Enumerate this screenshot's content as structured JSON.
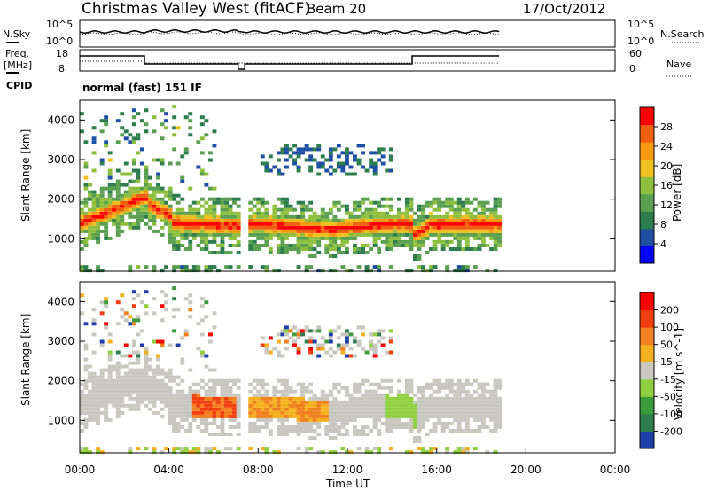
{
  "header": {
    "title": "Christmas Valley West (fitACF)",
    "beam": "Beam 20",
    "date": "17/Oct/2012"
  },
  "sky_panel": {
    "left_label": "N.Sky",
    "right_label": "N.Search",
    "left_ticks": [
      "10^5",
      "10^0"
    ],
    "right_ticks": [
      "10^5",
      "10^0"
    ]
  },
  "freq_panel": {
    "left_label_1": "Freq.",
    "left_label_2": "[MHz]",
    "left_ticks": [
      "18",
      "8"
    ],
    "right_label": "Nave",
    "right_ticks": [
      "60",
      "0"
    ],
    "cpid_label": "CPID",
    "cpid_text": "normal (fast) 151 IF"
  },
  "chart_data": [
    {
      "type": "heatmap",
      "title": "",
      "xlabel": "",
      "ylabel": "Slant Range [km]",
      "xlim": [
        0,
        24
      ],
      "ylim": [
        180,
        4500
      ],
      "yticks": [
        "1000",
        "2000",
        "3000",
        "4000"
      ],
      "colorbar": {
        "label": "Power [dB]",
        "ticks": [
          "28",
          "24",
          "20",
          "16",
          "12",
          "8",
          "4"
        ],
        "range": [
          0,
          30
        ],
        "colors": [
          "#0000ff",
          "#1f4fa3",
          "#2e7d4f",
          "#5aa050",
          "#8fbf3f",
          "#f0c020",
          "#f59a10",
          "#f06010",
          "#ff0000"
        ]
      }
    },
    {
      "type": "heatmap",
      "title": "",
      "xlabel": "Time UT",
      "ylabel": "Slant Range [km]",
      "xlim": [
        0,
        24
      ],
      "ylim": [
        180,
        4500
      ],
      "yticks": [
        "1000",
        "2000",
        "3000",
        "4000"
      ],
      "xticks": [
        "00:00",
        "04:00",
        "08:00",
        "12:00",
        "16:00",
        "20:00",
        "00:00"
      ],
      "colorbar": {
        "label": "Velocity [m s^-1]",
        "ticks": [
          "200",
          "100",
          "50",
          "15",
          "-15",
          "-50",
          "-100",
          "-200"
        ],
        "colors": [
          "#1f3fa8",
          "#2e7d4f",
          "#3c9c3c",
          "#8fd040",
          "#c8c8c0",
          "#f5b020",
          "#f08020",
          "#f04010",
          "#ff0000"
        ]
      }
    }
  ]
}
